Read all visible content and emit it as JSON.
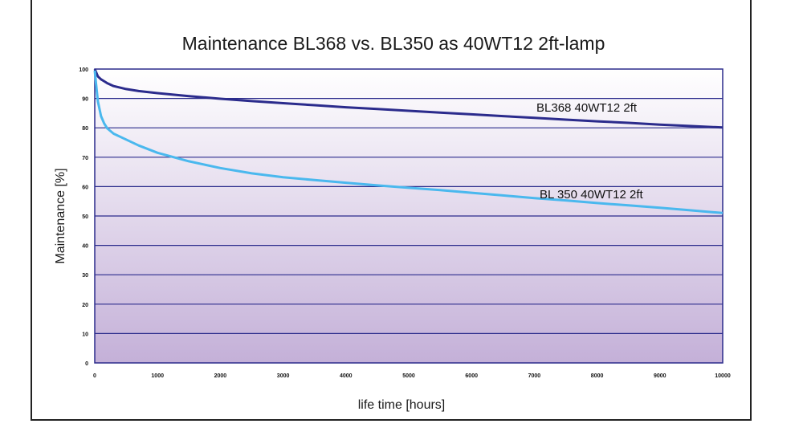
{
  "chart_data": {
    "type": "line",
    "title": "Maintenance  BL368 vs. BL350 as 40WT12 2ft-lamp",
    "xlabel": "life time [hours]",
    "ylabel": "Maintenance [%]",
    "xlim": [
      0,
      10000
    ],
    "ylim": [
      0,
      100
    ],
    "x_ticks": [
      0,
      1000,
      2000,
      3000,
      4000,
      5000,
      6000,
      7000,
      8000,
      9000,
      10000
    ],
    "y_ticks": [
      0,
      10,
      20,
      30,
      40,
      50,
      60,
      70,
      80,
      90,
      100
    ],
    "grid": true,
    "series": [
      {
        "name": "BL368 40WT12 2ft",
        "color": "#2b2b8c",
        "x": [
          0,
          50,
          100,
          200,
          300,
          500,
          700,
          1000,
          1500,
          2000,
          2500,
          3000,
          3500,
          4000,
          4500,
          5000,
          5500,
          6000,
          6500,
          7000,
          7500,
          8000,
          8500,
          9000,
          9500,
          10000
        ],
        "y": [
          100,
          97.5,
          96.5,
          95.2,
          94.2,
          93.2,
          92.5,
          91.8,
          90.8,
          89.9,
          89.1,
          88.4,
          87.7,
          87.0,
          86.4,
          85.8,
          85.2,
          84.6,
          84.0,
          83.4,
          82.8,
          82.2,
          81.7,
          81.1,
          80.6,
          80.1
        ]
      },
      {
        "name": "BL 350 40WT12 2ft",
        "color": "#4ab8ee",
        "x": [
          0,
          20,
          50,
          100,
          150,
          200,
          300,
          500,
          700,
          1000,
          1500,
          2000,
          2500,
          3000,
          3500,
          4000,
          4500,
          5000,
          5500,
          6000,
          6500,
          7000,
          7500,
          8000,
          8500,
          9000,
          9500,
          10000
        ],
        "y": [
          99.5,
          95,
          89,
          84,
          81.5,
          79.8,
          78.0,
          76.0,
          74.0,
          71.5,
          68.6,
          66.3,
          64.5,
          63.2,
          62.2,
          61.3,
          60.4,
          59.6,
          58.8,
          57.9,
          57.0,
          56.1,
          55.3,
          54.4,
          53.6,
          52.8,
          51.9,
          51.0
        ]
      }
    ]
  }
}
